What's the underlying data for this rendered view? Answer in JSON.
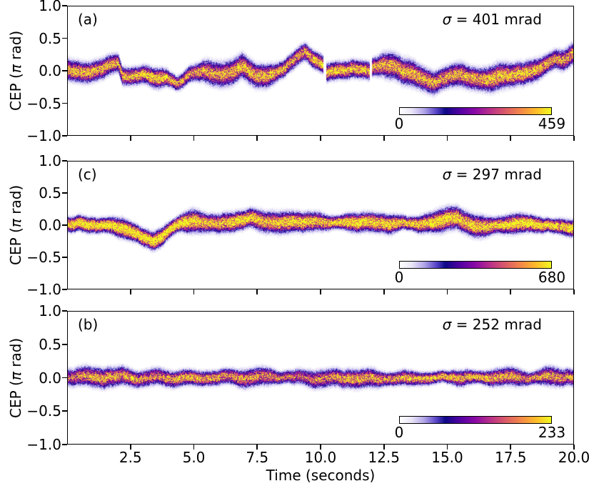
{
  "figure": {
    "xlabel": "Time (seconds)",
    "ylabel": {
      "prefix": "CEP (",
      "pi": "π",
      "suffix": " rad)"
    },
    "x_tick_labels": [
      "2.5",
      "5.0",
      "7.5",
      "10.0",
      "12.5",
      "15.0",
      "17.5",
      "20.0"
    ],
    "x_tick_values": [
      2.5,
      5,
      7.5,
      10,
      12.5,
      15,
      17.5,
      20
    ],
    "y_tick_labels": [
      "1.0",
      "0.5",
      "0.0",
      "−0.5",
      "−1.0"
    ],
    "y_tick_values": [
      1,
      0.5,
      0,
      -0.5,
      -1
    ],
    "x_range": [
      0,
      20
    ],
    "y_range": [
      -1,
      1
    ],
    "colors": {
      "text": "#000000",
      "spine": "#000000",
      "background": "#ffffff"
    },
    "colormap_stops": [
      [
        0.0,
        "#ffffff"
      ],
      [
        0.08,
        "#e9e5f7"
      ],
      [
        0.16,
        "#b3a6e8"
      ],
      [
        0.24,
        "#5a46c8"
      ],
      [
        0.3,
        "#0d0887"
      ],
      [
        0.4,
        "#5402a3"
      ],
      [
        0.5,
        "#8b0aa5"
      ],
      [
        0.6,
        "#b93289"
      ],
      [
        0.7,
        "#db5c68"
      ],
      [
        0.8,
        "#f48849"
      ],
      [
        0.9,
        "#febc2a"
      ],
      [
        1.0,
        "#f0f921"
      ]
    ]
  },
  "chart_data": [
    {
      "id": "a",
      "type": "heatmap",
      "label": "(a)",
      "sigma_symbol": "σ",
      "sigma_rest": " = 401 mrad",
      "sigma_mrad": 401,
      "colorbar": {
        "min": 0,
        "max": 459
      },
      "x_range": [
        0,
        20
      ],
      "y_range": [
        -1,
        1
      ],
      "gaps": [
        10.17,
        11.99
      ],
      "band_sigma_pirad": 0.08,
      "core_gain": 1.0,
      "seed": 101,
      "centerline": {
        "t": [
          0,
          0.4,
          0.9,
          1.4,
          1.85,
          2.0,
          2.15,
          2.5,
          3.0,
          3.4,
          3.9,
          4.3,
          4.55,
          4.8,
          5.1,
          5.5,
          6.0,
          6.4,
          6.9,
          7.1,
          7.45,
          7.8,
          8.2,
          8.6,
          9.1,
          9.35,
          9.7,
          10.1,
          10.22,
          10.6,
          11.0,
          11.4,
          11.95,
          12.05,
          12.4,
          12.9,
          13.3,
          13.7,
          14.1,
          14.5,
          14.8,
          15.1,
          15.5,
          15.9,
          16.3,
          16.6,
          17.0,
          17.4,
          17.8,
          18.2,
          18.6,
          19.0,
          19.3,
          19.6,
          20
        ],
        "cep": [
          0.04,
          0.0,
          -0.03,
          0.04,
          0.12,
          0.1,
          -0.08,
          -0.1,
          -0.06,
          -0.12,
          -0.1,
          -0.2,
          -0.16,
          -0.05,
          -0.02,
          -0.01,
          -0.06,
          -0.04,
          0.08,
          0.02,
          -0.09,
          -0.1,
          -0.05,
          0.04,
          0.22,
          0.3,
          0.18,
          0.1,
          -0.04,
          -0.02,
          0.0,
          0.02,
          0.0,
          0.06,
          0.1,
          0.08,
          0.0,
          -0.04,
          -0.12,
          -0.18,
          -0.12,
          -0.07,
          -0.06,
          -0.1,
          -0.13,
          -0.16,
          -0.1,
          -0.08,
          -0.06,
          -0.03,
          0.02,
          0.12,
          0.18,
          0.15,
          0.26
        ]
      }
    },
    {
      "id": "c",
      "type": "heatmap",
      "label": "(c)",
      "sigma_symbol": "σ",
      "sigma_rest": " = 297 mrad",
      "sigma_mrad": 297,
      "colorbar": {
        "min": 0,
        "max": 680
      },
      "x_range": [
        0,
        20
      ],
      "y_range": [
        -1,
        1
      ],
      "gaps": [],
      "band_sigma_pirad": 0.07,
      "core_gain": 1.15,
      "seed": 202,
      "centerline": {
        "t": [
          0,
          0.5,
          1.0,
          1.5,
          2.0,
          2.5,
          3.0,
          3.3,
          3.6,
          3.85,
          4.1,
          4.5,
          5.0,
          5.5,
          6.0,
          6.5,
          7.0,
          7.3,
          7.8,
          8.3,
          8.8,
          9.3,
          9.8,
          10.3,
          10.8,
          11.3,
          11.8,
          12.3,
          12.8,
          13.3,
          13.8,
          14.3,
          14.8,
          15.1,
          15.35,
          15.7,
          16.1,
          16.5,
          17.0,
          17.5,
          18.0,
          18.5,
          19.0,
          19.5,
          20
        ],
        "cep": [
          0.02,
          0.04,
          -0.02,
          -0.01,
          -0.05,
          -0.1,
          -0.18,
          -0.24,
          -0.22,
          -0.12,
          -0.04,
          0.03,
          0.06,
          0.04,
          0.02,
          0.05,
          0.1,
          0.12,
          0.05,
          0.03,
          0.06,
          0.04,
          0.06,
          0.03,
          0.05,
          0.04,
          0.06,
          0.04,
          0.02,
          0.05,
          0.03,
          0.06,
          0.08,
          0.12,
          0.14,
          0.06,
          0.0,
          -0.03,
          -0.01,
          0.01,
          0.03,
          0.01,
          -0.01,
          -0.03,
          -0.05
        ]
      }
    },
    {
      "id": "b",
      "type": "heatmap",
      "label": "(b)",
      "sigma_symbol": "σ",
      "sigma_rest": " = 252 mrad",
      "sigma_mrad": 252,
      "colorbar": {
        "min": 0,
        "max": 233
      },
      "x_range": [
        0,
        20
      ],
      "y_range": [
        -1,
        1
      ],
      "gaps": [],
      "band_sigma_pirad": 0.062,
      "core_gain": 0.85,
      "seed": 303,
      "centerline": {
        "t": [
          0,
          0.7,
          1.4,
          2.1,
          2.8,
          3.5,
          4.2,
          4.9,
          5.6,
          6.3,
          7.0,
          7.7,
          8.4,
          9.1,
          9.8,
          10.5,
          11.2,
          11.9,
          12.6,
          13.3,
          14.0,
          14.7,
          15.4,
          16.1,
          16.8,
          17.5,
          18.2,
          18.9,
          19.5,
          20
        ],
        "cep": [
          -0.02,
          0.02,
          -0.03,
          0.03,
          -0.02,
          0.02,
          -0.03,
          0.01,
          -0.02,
          0.03,
          -0.02,
          0.02,
          -0.01,
          0.03,
          -0.03,
          0.01,
          -0.02,
          0.02,
          -0.02,
          0.01,
          -0.03,
          0.02,
          -0.02,
          0.02,
          -0.01,
          0.03,
          -0.02,
          0.02,
          0.0,
          0.01
        ]
      }
    }
  ]
}
